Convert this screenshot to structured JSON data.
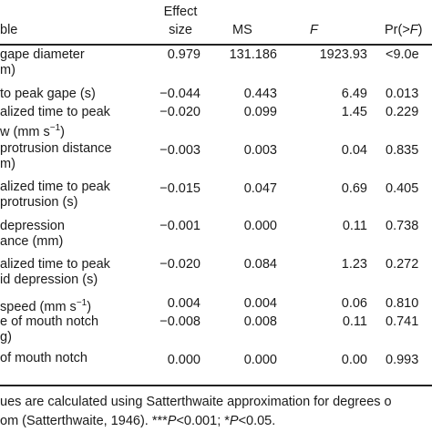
{
  "header": {
    "variable": "ble",
    "effect_size_1": "Effect",
    "effect_size_2": "size",
    "ms": "MS",
    "f": "F",
    "pr_1": "Pr(>",
    "pr_f": "F",
    "pr_2": ")"
  },
  "rows": [
    {
      "label1": "gape diameter",
      "label2": "m)",
      "effect": "0.979",
      "ms": "131.186",
      "f": "1923.93",
      "p": "<9.0e"
    },
    {
      "label1": "to peak gape (s)",
      "label2": "",
      "effect": "−0.044",
      "ms": "0.443",
      "f": "6.49",
      "p": "0.013"
    },
    {
      "label1": "alized time to peak",
      "label2": "w (mm s",
      "label2_sup": "−1",
      "label2_after": ")",
      "effect": "−0.020",
      "ms": "0.099",
      "f": "1.45",
      "p": "0.229"
    },
    {
      "label1": "protrusion distance",
      "label2": "m)",
      "effect": "−0.003",
      "ms": "0.003",
      "f": "0.04",
      "p": "0.835"
    },
    {
      "label1": "alized time to peak",
      "label2": "protrusion (s)",
      "effect": "−0.015",
      "ms": "0.047",
      "f": "0.69",
      "p": "0.405"
    },
    {
      "label1": "depression",
      "label2": "ance (mm)",
      "effect": "−0.001",
      "ms": "0.000",
      "f": "0.11",
      "p": "0.738"
    },
    {
      "label1": "alized time to peak",
      "label2": "id depression (s)",
      "effect": "−0.020",
      "ms": "0.084",
      "f": "1.23",
      "p": "0.272"
    },
    {
      "label1": "speed (mm s",
      "label1_sup": "−1",
      "label1_after": ")",
      "label2": "",
      "effect": "0.004",
      "ms": "0.004",
      "f": "0.06",
      "p": "0.810"
    },
    {
      "label1": "e of mouth notch",
      "label2": "g)",
      "effect": "−0.008",
      "ms": "0.008",
      "f": "0.11",
      "p": "0.741"
    },
    {
      "label1": "of mouth notch",
      "label2": "",
      "effect": "0.000",
      "ms": "0.000",
      "f": "0.00",
      "p": "0.993"
    }
  ],
  "footnote": {
    "line1": "ues are calculated using Satterthwaite approximation for degrees o",
    "line2_a": "om (Satterthwaite, 1946). ***",
    "line2_p1": "P",
    "line2_b": "<0.001; *",
    "line2_p2": "P",
    "line2_c": "<0.05."
  }
}
